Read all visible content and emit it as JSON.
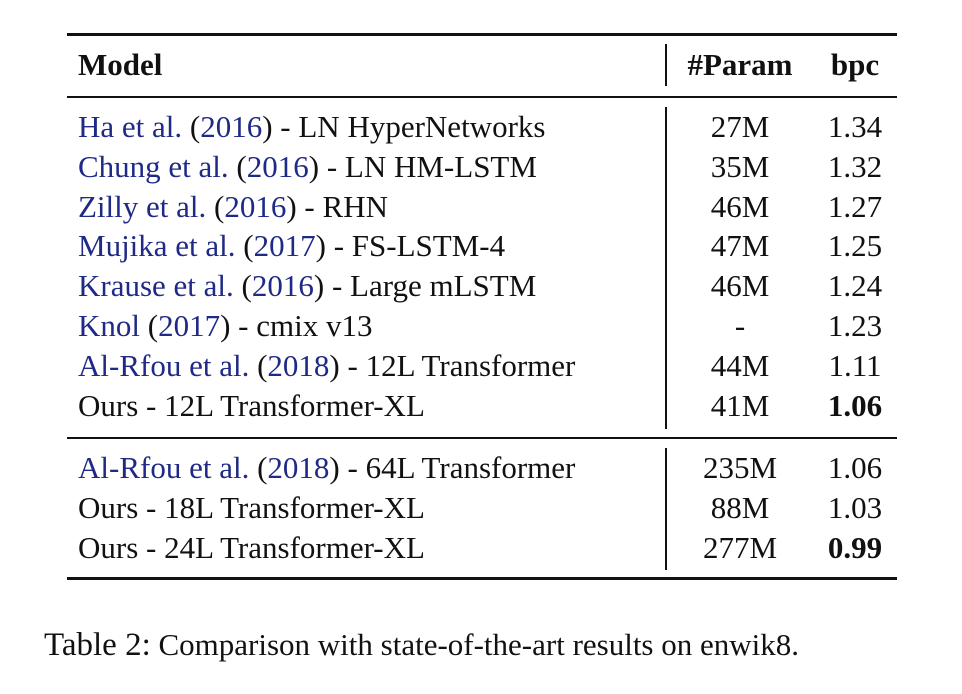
{
  "table": {
    "headers": {
      "model": "Model",
      "param": "#Param",
      "bpc": "bpc"
    },
    "group1": [
      {
        "author": "Ha et al.",
        "year": "2016",
        "desc": "LN HyperNetworks",
        "param": "27M",
        "bpc": "1.34",
        "bold": false
      },
      {
        "author": "Chung et al.",
        "year": "2016",
        "desc": "LN HM-LSTM",
        "param": "35M",
        "bpc": "1.32",
        "bold": false
      },
      {
        "author": "Zilly et al.",
        "year": "2016",
        "desc": "RHN",
        "param": "46M",
        "bpc": "1.27",
        "bold": false
      },
      {
        "author": "Mujika et al.",
        "year": "2017",
        "desc": "FS-LSTM-4",
        "param": "47M",
        "bpc": "1.25",
        "bold": false
      },
      {
        "author": "Krause et al.",
        "year": "2016",
        "desc": "Large mLSTM",
        "param": "46M",
        "bpc": "1.24",
        "bold": false
      },
      {
        "author": "Knol",
        "year": "2017",
        "desc": "cmix v13",
        "param": "-",
        "bpc": "1.23",
        "bold": false
      },
      {
        "author": "Al-Rfou et al.",
        "year": "2018",
        "desc": "12L Transformer",
        "param": "44M",
        "bpc": "1.11",
        "bold": false
      },
      {
        "model": "Ours - 12L Transformer-XL",
        "param": "41M",
        "bpc": "1.06",
        "bold": true
      }
    ],
    "group2": [
      {
        "author": "Al-Rfou et al.",
        "year": "2018",
        "desc": "64L Transformer",
        "param": "235M",
        "bpc": "1.06",
        "bold": false
      },
      {
        "model": "Ours - 18L Transformer-XL",
        "param": "88M",
        "bpc": "1.03",
        "bold": false
      },
      {
        "model": "Ours - 24L Transformer-XL",
        "param": "277M",
        "bpc": "0.99",
        "bold": true
      }
    ]
  },
  "caption": {
    "label": "Table 2:",
    "text": "Comparison with state-of-the-art results on enwik8."
  }
}
